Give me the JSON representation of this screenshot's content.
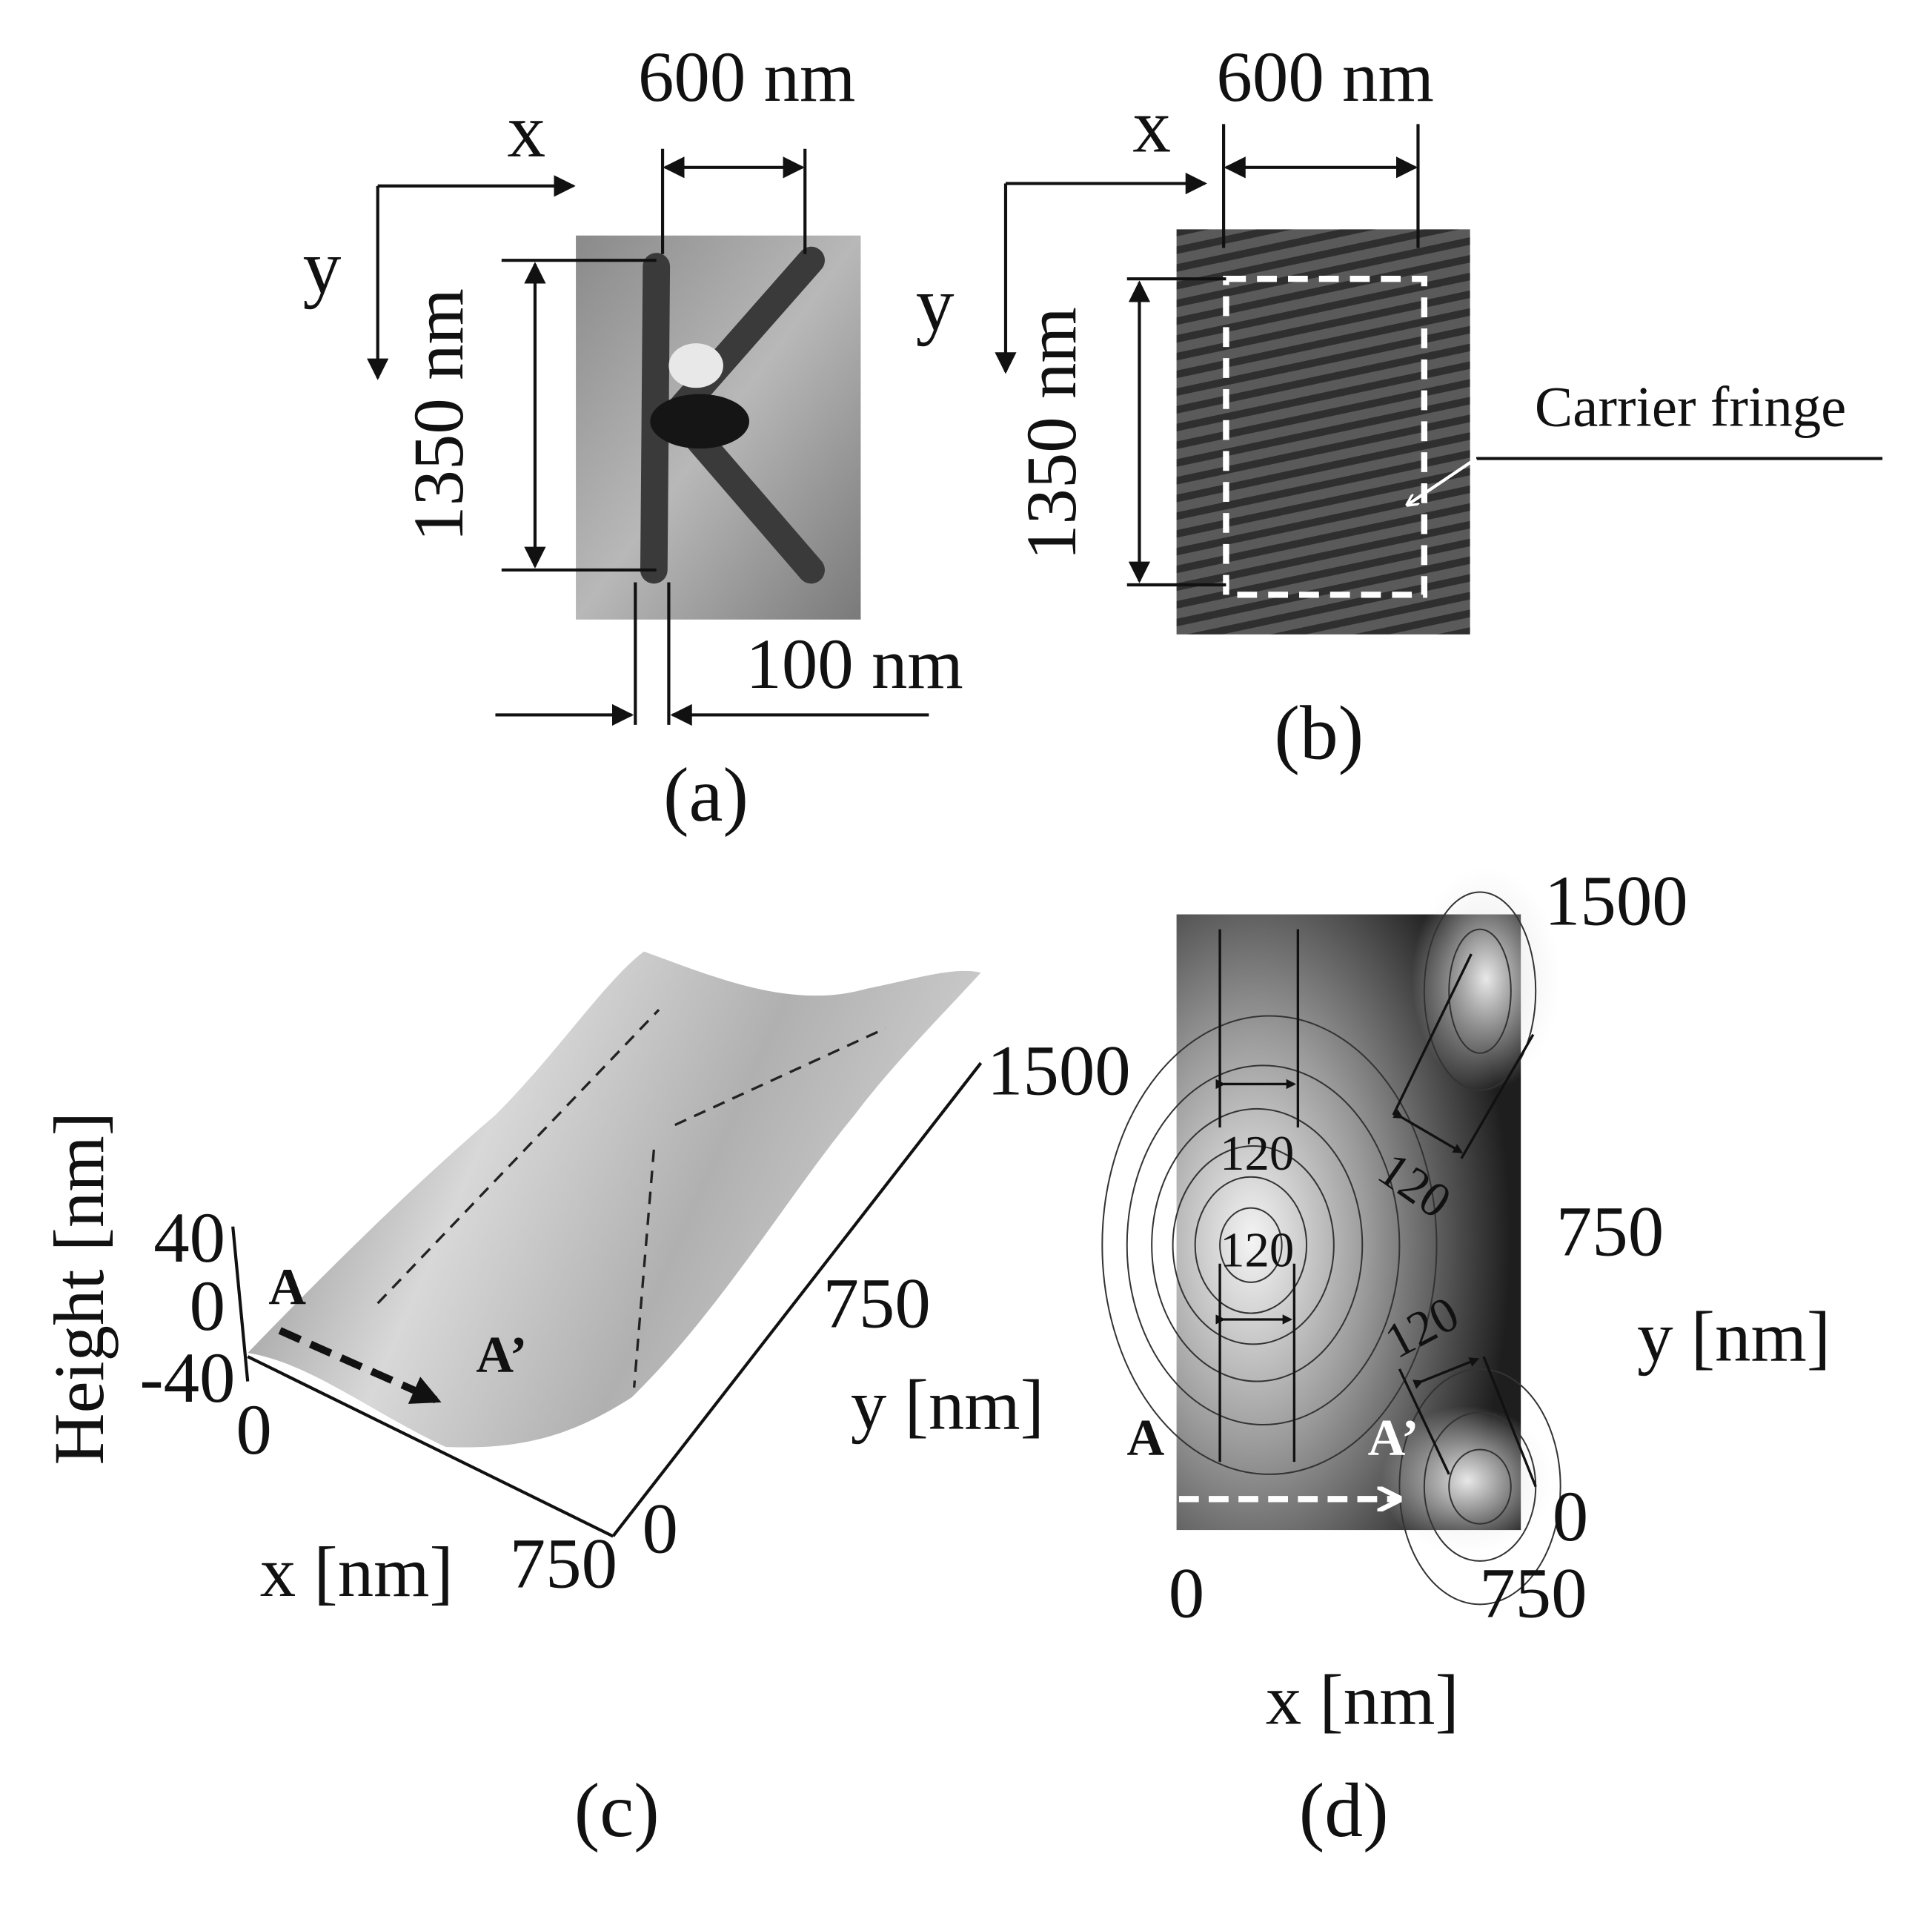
{
  "panel_a": {
    "label": "(a)",
    "x_axis": "x",
    "y_axis": "y",
    "width": "600 nm",
    "height": "1350 nm",
    "line_width": "100 nm"
  },
  "panel_b": {
    "label": "(b)",
    "x_axis": "x",
    "y_axis": "y",
    "width": "600 nm",
    "height": "1350 nm",
    "annotation": "Carrier fringe"
  },
  "panel_c": {
    "label": "(c)",
    "z_axis_title": "Height [nm]",
    "z_ticks": [
      "40",
      "0",
      "-40"
    ],
    "x_axis_title": "x [nm]",
    "x_ticks": [
      "0",
      "750"
    ],
    "y_axis_title": "y [nm]",
    "y_ticks": [
      "0",
      "750",
      "1500"
    ],
    "section_start": "A",
    "section_end": "A’"
  },
  "panel_d": {
    "label": "(d)",
    "x_axis_title": "x [nm]",
    "x_ticks": [
      "0",
      "750"
    ],
    "y_axis_title": "y [nm]",
    "y_ticks": [
      "0",
      "750",
      "1500"
    ],
    "widths": [
      "120",
      "120",
      "120",
      "120"
    ],
    "section_start": "A",
    "section_end": "A’"
  }
}
